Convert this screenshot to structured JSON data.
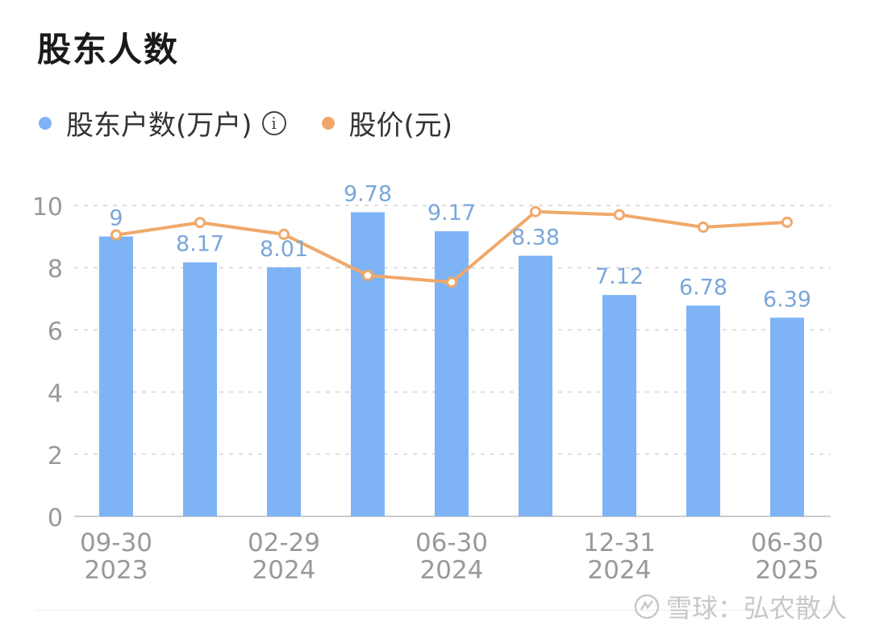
{
  "title": "股东人数",
  "legend": {
    "holders_label": "股东户数(万户)",
    "price_label": "股价(元)"
  },
  "colors": {
    "bar": "#7eb3f5",
    "line": "#f0a86a",
    "bar_label": "#7ba7d9",
    "axis_text": "#999999",
    "grid": "#dddddd"
  },
  "icons": {
    "info": "info-icon",
    "watermark": "snowball-logo-icon"
  },
  "watermark": "雪球：弘农散人",
  "chart_data": {
    "type": "bar",
    "categories": [
      "09-30 2023",
      "",
      "02-29 2024",
      "",
      "06-30 2024",
      "",
      "12-31 2024",
      "",
      "06-30 2025"
    ],
    "x_tick_labels": [
      {
        "top": "09-30",
        "bottom": "2023"
      },
      {
        "top": "",
        "bottom": ""
      },
      {
        "top": "02-29",
        "bottom": "2024"
      },
      {
        "top": "",
        "bottom": ""
      },
      {
        "top": "06-30",
        "bottom": "2024"
      },
      {
        "top": "",
        "bottom": ""
      },
      {
        "top": "12-31",
        "bottom": "2024"
      },
      {
        "top": "",
        "bottom": ""
      },
      {
        "top": "06-30",
        "bottom": "2025"
      }
    ],
    "series": [
      {
        "name": "股东户数(万户)",
        "type": "bar",
        "values": [
          9,
          8.17,
          8.01,
          9.78,
          9.17,
          8.38,
          7.12,
          6.78,
          6.39
        ],
        "labels": [
          "9",
          "8.17",
          "8.01",
          "9.78",
          "9.17",
          "8.38",
          "7.12",
          "6.78",
          "6.39"
        ]
      },
      {
        "name": "股价(元)",
        "type": "line",
        "values": [
          9.05,
          9.45,
          9.07,
          7.75,
          7.53,
          9.8,
          9.7,
          9.3,
          9.46
        ]
      }
    ],
    "ylim": [
      0,
      10
    ],
    "yticks": [
      0,
      2,
      4,
      6,
      8,
      10
    ],
    "ytick_labels": [
      "0",
      "2",
      "4",
      "6",
      "8",
      "10"
    ],
    "grid": true,
    "legend_position": "top-left"
  }
}
